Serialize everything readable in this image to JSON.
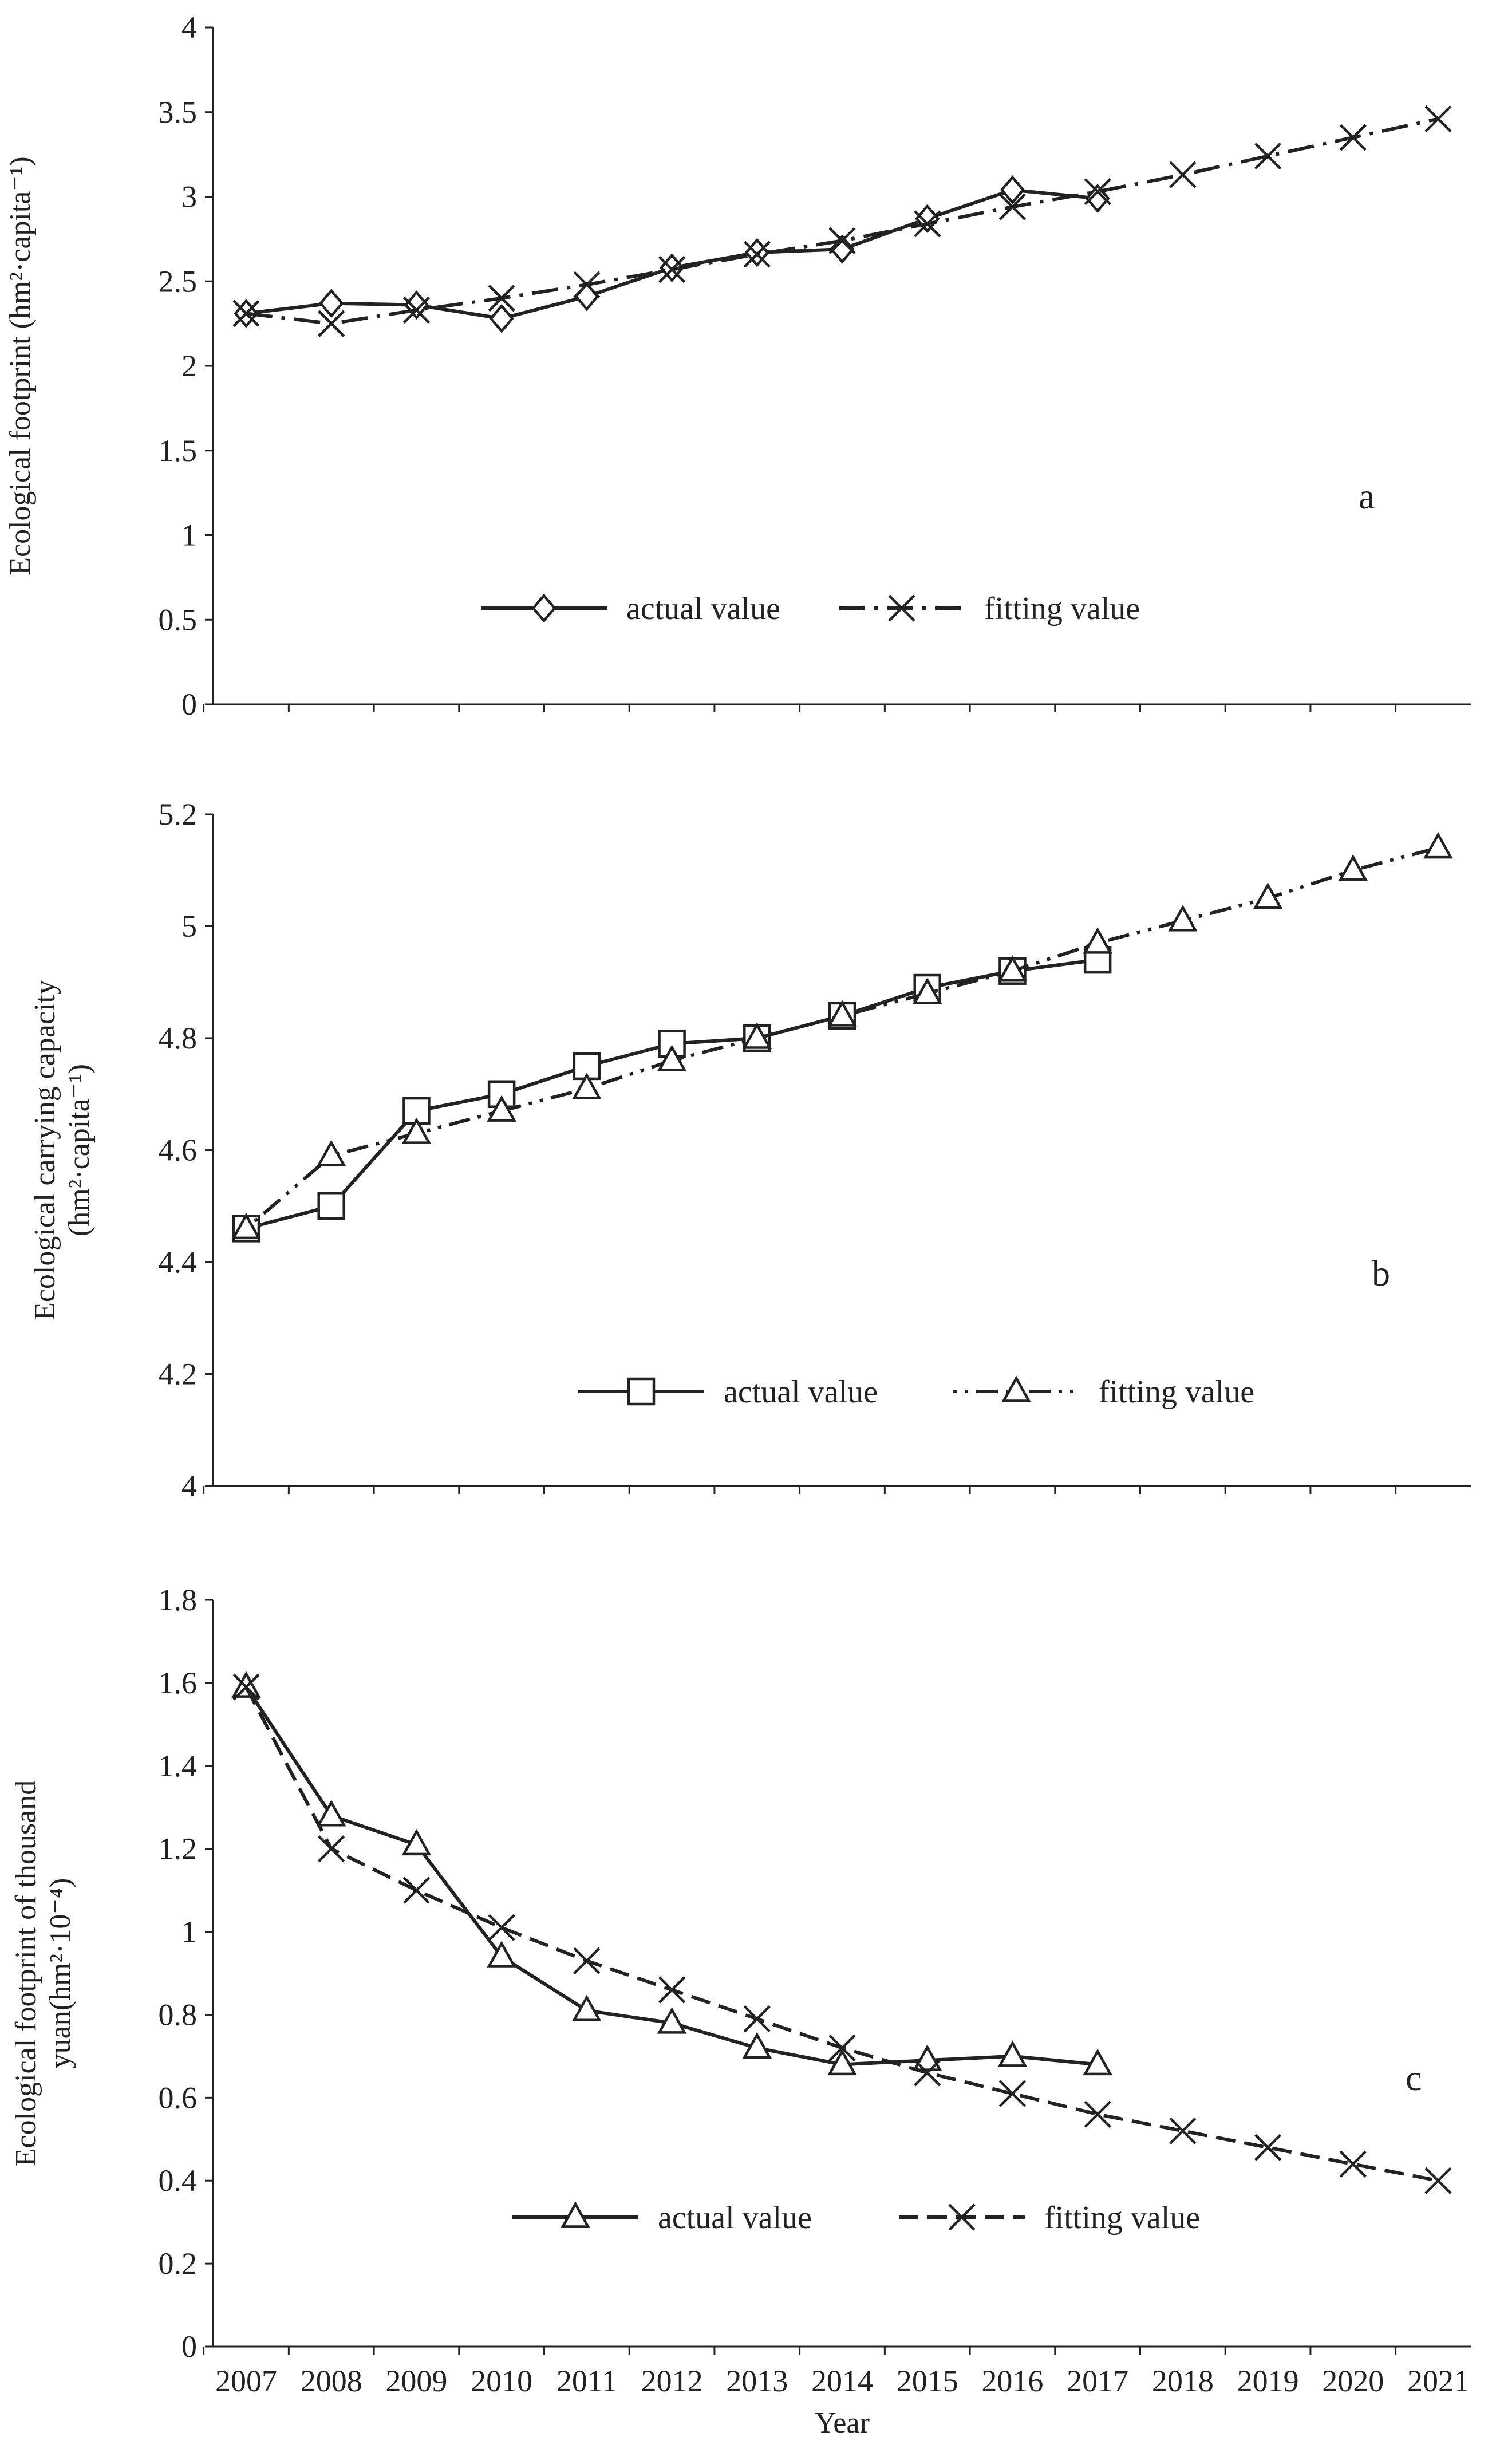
{
  "colors": {
    "line": "#222222",
    "background": "#ffffff"
  },
  "chart_data": [
    {
      "id": "a",
      "type": "line",
      "panel_label": "a",
      "ylabel": "Ecological footprint (hm²·capita⁻¹)",
      "ylim": [
        0,
        4
      ],
      "yticks": [
        0,
        0.5,
        1,
        1.5,
        2,
        2.5,
        3,
        3.5,
        4
      ],
      "ytick_labels": [
        "0",
        "0.5",
        "1",
        "1.5",
        "2",
        "2.5",
        "3",
        "3.5",
        "4"
      ],
      "x": [
        2007,
        2008,
        2009,
        2010,
        2011,
        2012,
        2013,
        2014,
        2015,
        2016,
        2017,
        2018,
        2019,
        2020,
        2021
      ],
      "legend_position": "lower-center",
      "series": [
        {
          "name": "actual value",
          "marker": "diamond",
          "dash": "solid",
          "x": [
            2007,
            2008,
            2009,
            2010,
            2011,
            2012,
            2013,
            2014,
            2015,
            2016,
            2017
          ],
          "values": [
            2.31,
            2.37,
            2.36,
            2.28,
            2.41,
            2.58,
            2.67,
            2.69,
            2.87,
            3.04,
            2.99
          ]
        },
        {
          "name": "fitting value",
          "marker": "x",
          "dash": "dashdot",
          "x": [
            2007,
            2008,
            2009,
            2010,
            2011,
            2012,
            2013,
            2014,
            2015,
            2016,
            2017,
            2018,
            2019,
            2020,
            2021
          ],
          "values": [
            2.31,
            2.25,
            2.33,
            2.4,
            2.48,
            2.57,
            2.66,
            2.74,
            2.84,
            2.94,
            3.03,
            3.13,
            3.24,
            3.35,
            3.46
          ]
        }
      ]
    },
    {
      "id": "b",
      "type": "line",
      "panel_label": "b",
      "ylabel": [
        "Ecological carrying capacity",
        "(hm²·capita⁻¹)"
      ],
      "ylim": [
        4,
        5.2
      ],
      "yticks": [
        4,
        4.2,
        4.4,
        4.6,
        4.8,
        5,
        5.2
      ],
      "ytick_labels": [
        "4",
        "4.2",
        "4.4",
        "4.6",
        "4.8",
        "5",
        "5.2"
      ],
      "x": [
        2007,
        2008,
        2009,
        2010,
        2011,
        2012,
        2013,
        2014,
        2015,
        2016,
        2017,
        2018,
        2019,
        2020,
        2021
      ],
      "legend_position": "lower-center",
      "series": [
        {
          "name": "actual value",
          "marker": "square",
          "dash": "solid",
          "x": [
            2007,
            2008,
            2009,
            2010,
            2011,
            2012,
            2013,
            2014,
            2015,
            2016,
            2017
          ],
          "values": [
            4.46,
            4.5,
            4.67,
            4.7,
            4.75,
            4.79,
            4.8,
            4.84,
            4.89,
            4.92,
            4.94
          ]
        },
        {
          "name": "fitting value",
          "marker": "triangle",
          "dash": "dotdash",
          "x": [
            2007,
            2008,
            2009,
            2010,
            2011,
            2012,
            2013,
            2014,
            2015,
            2016,
            2017,
            2018,
            2019,
            2020,
            2021
          ],
          "values": [
            4.46,
            4.59,
            4.63,
            4.67,
            4.71,
            4.76,
            4.8,
            4.84,
            4.88,
            4.92,
            4.97,
            5.01,
            5.05,
            5.1,
            5.14
          ]
        }
      ]
    },
    {
      "id": "c",
      "type": "line",
      "panel_label": "c",
      "ylabel": [
        "Ecological footprint of thousand",
        "yuan(hm²·10⁻⁴)"
      ],
      "xlabel": "Year",
      "ylim": [
        0,
        1.8
      ],
      "yticks": [
        0,
        0.2,
        0.4,
        0.6,
        0.8,
        1,
        1.2,
        1.4,
        1.6,
        1.8
      ],
      "ytick_labels": [
        "0",
        "0.2",
        "0.4",
        "0.6",
        "0.8",
        "1",
        "1.2",
        "1.4",
        "1.6",
        "1.8"
      ],
      "x": [
        2007,
        2008,
        2009,
        2010,
        2011,
        2012,
        2013,
        2014,
        2015,
        2016,
        2017,
        2018,
        2019,
        2020,
        2021
      ],
      "xtick_labels": [
        "2007",
        "2008",
        "2009",
        "2010",
        "2011",
        "2012",
        "2013",
        "2014",
        "2015",
        "2016",
        "2017",
        "2018",
        "2019",
        "2020",
        "2021"
      ],
      "legend_position": "lower-center",
      "series": [
        {
          "name": "actual value",
          "marker": "triangle",
          "dash": "solid",
          "x": [
            2007,
            2008,
            2009,
            2010,
            2011,
            2012,
            2013,
            2014,
            2015,
            2016,
            2017
          ],
          "values": [
            1.59,
            1.28,
            1.21,
            0.94,
            0.81,
            0.78,
            0.72,
            0.68,
            0.69,
            0.7,
            0.68
          ]
        },
        {
          "name": "fitting value",
          "marker": "x",
          "dash": "dashed",
          "x": [
            2007,
            2008,
            2009,
            2010,
            2011,
            2012,
            2013,
            2014,
            2015,
            2016,
            2017,
            2018,
            2019,
            2020,
            2021
          ],
          "values": [
            1.59,
            1.2,
            1.1,
            1.01,
            0.93,
            0.86,
            0.79,
            0.72,
            0.66,
            0.61,
            0.56,
            0.52,
            0.48,
            0.44,
            0.4
          ]
        }
      ]
    }
  ]
}
